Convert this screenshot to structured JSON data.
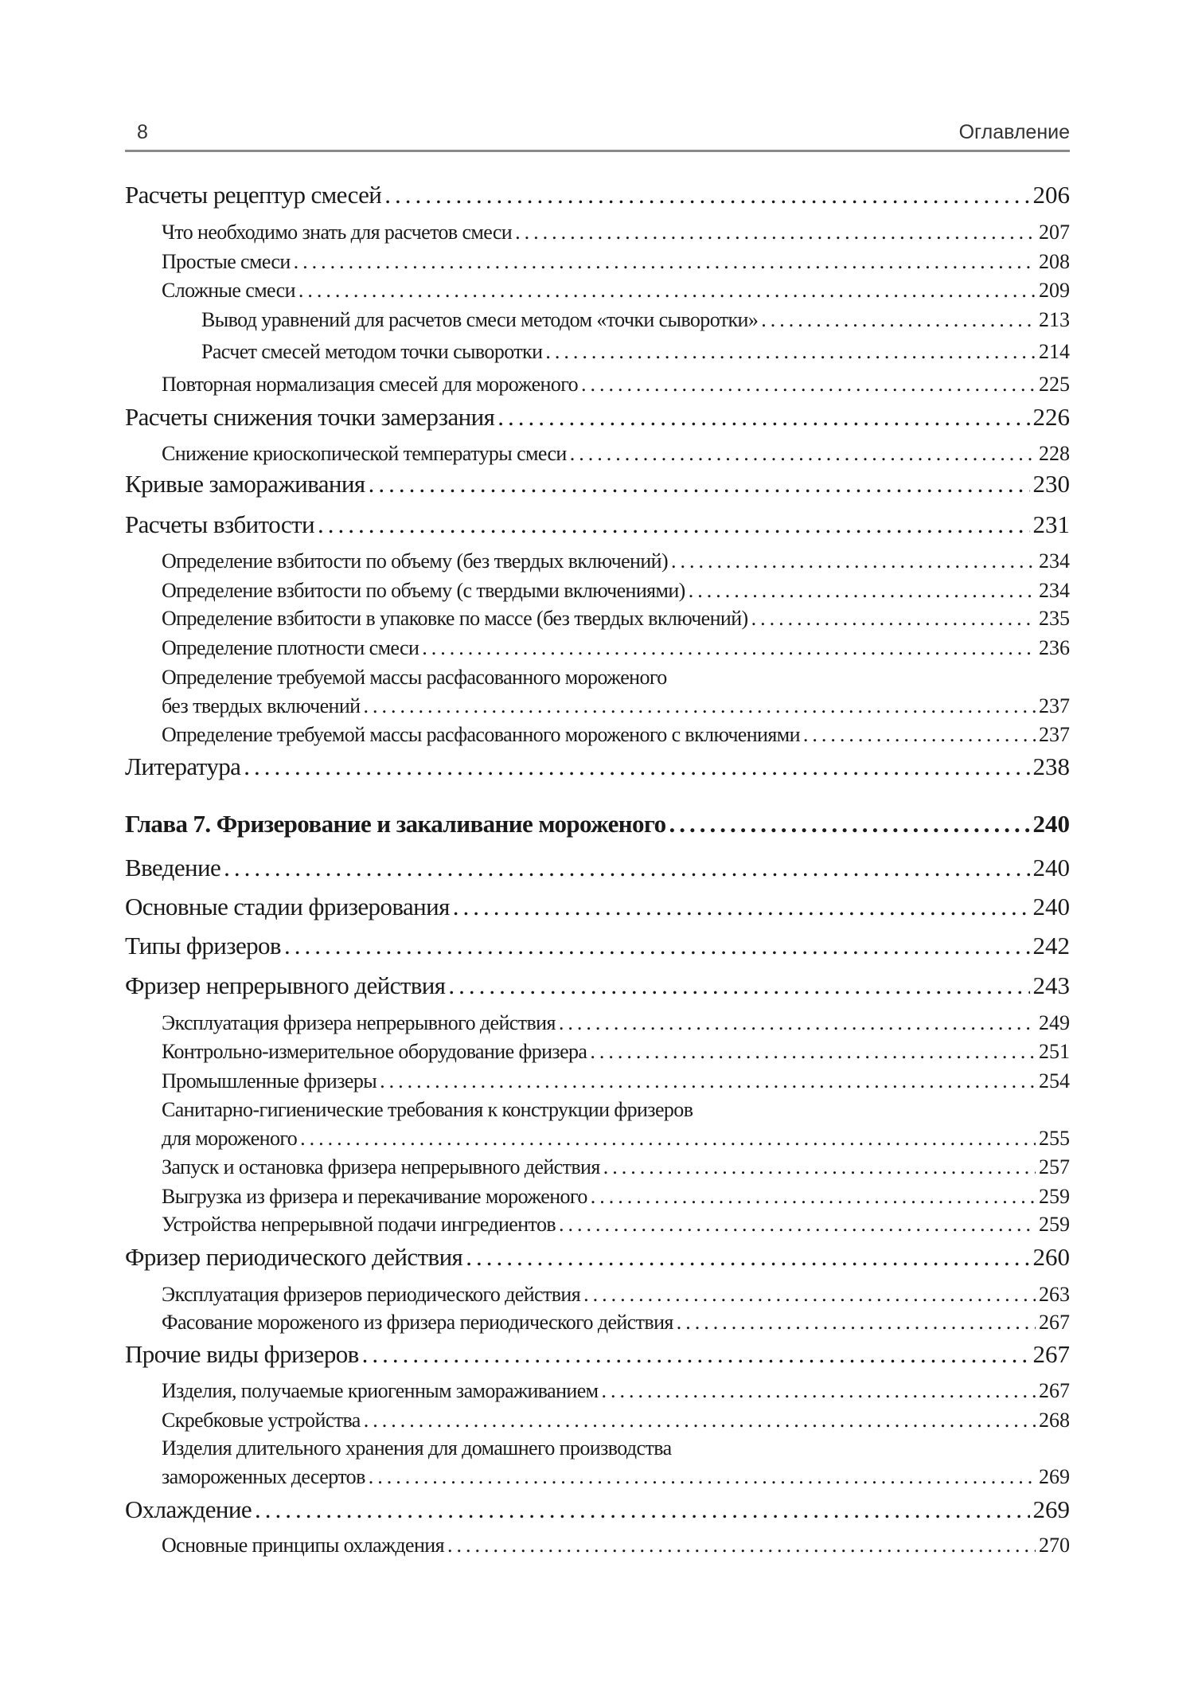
{
  "header": {
    "page_number": "8",
    "running_title": "Оглавление"
  },
  "entries": [
    {
      "level": 0,
      "lines": [
        "Расчеты рецептур смесей"
      ],
      "page": "206"
    },
    {
      "level": 1,
      "lines": [
        "Что необходимо знать для расчетов смеси"
      ],
      "page": "207"
    },
    {
      "level": 1,
      "lines": [
        "Простые смеси"
      ],
      "page": "208"
    },
    {
      "level": 1,
      "lines": [
        "Сложные смеси"
      ],
      "page": "209"
    },
    {
      "level": 2,
      "lines": [
        "Вывод уравнений для расчетов смеси методом «точки сыворотки»"
      ],
      "page": "213"
    },
    {
      "level": 2,
      "lines": [
        "Расчет смесей методом точки сыворотки"
      ],
      "page": "214"
    },
    {
      "level": 1,
      "lines": [
        "Повторная нормализация смесей для мороженого"
      ],
      "page": "225"
    },
    {
      "level": 0,
      "lines": [
        "Расчеты снижения точки замерзания"
      ],
      "page": "226"
    },
    {
      "level": 1,
      "lines": [
        "Снижение криоскопической температуры смеси"
      ],
      "page": "228"
    },
    {
      "level": 0,
      "lines": [
        "Кривые замораживания"
      ],
      "page": "230"
    },
    {
      "level": 0,
      "lines": [
        "Расчеты взбитости"
      ],
      "page": "231"
    },
    {
      "level": 1,
      "lines": [
        "Определение взбитости по объему (без твердых включений)"
      ],
      "page": "234"
    },
    {
      "level": 1,
      "lines": [
        "Определение взбитости по объему (с твердыми включениями)"
      ],
      "page": "234"
    },
    {
      "level": 1,
      "lines": [
        "Определение взбитости в упаковке по массе (без твердых включений)"
      ],
      "page": "235"
    },
    {
      "level": 1,
      "lines": [
        "Определение плотности смеси"
      ],
      "page": "236"
    },
    {
      "level": 1,
      "lines": [
        "Определение требуемой массы расфасованного мороженого",
        "без твердых включений"
      ],
      "page": "237"
    },
    {
      "level": 1,
      "lines": [
        "Определение требуемой массы расфасованного мороженого с включениями"
      ],
      "page": "237"
    },
    {
      "level": 0,
      "lines": [
        "Литература"
      ],
      "page": "238"
    },
    {
      "level": "chapter",
      "lines": [
        "Глава 7. Фризерование и закаливание мороженого"
      ],
      "page": "240"
    },
    {
      "level": 0,
      "lines": [
        "Введение"
      ],
      "page": "240"
    },
    {
      "level": 0,
      "lines": [
        "Основные стадии фризерования"
      ],
      "page": "240"
    },
    {
      "level": 0,
      "lines": [
        "Типы фризеров"
      ],
      "page": "242"
    },
    {
      "level": 0,
      "lines": [
        "Фризер непрерывного действия"
      ],
      "page": "243"
    },
    {
      "level": 1,
      "lines": [
        "Эксплуатация фризера непрерывного действия"
      ],
      "page": "249"
    },
    {
      "level": 1,
      "lines": [
        "Контрольно-измерительное оборудование фризера"
      ],
      "page": "251"
    },
    {
      "level": 1,
      "lines": [
        "Промышленные фризеры"
      ],
      "page": "254"
    },
    {
      "level": 1,
      "lines": [
        "Санитарно-гигиенические  требования  к конструкции фризеров",
        "для мороженого"
      ],
      "page": "255"
    },
    {
      "level": 1,
      "lines": [
        "Запуск и остановка фризера непрерывного действия"
      ],
      "page": "257"
    },
    {
      "level": 1,
      "lines": [
        "Выгрузка из фризера и перекачивание мороженого"
      ],
      "page": "259"
    },
    {
      "level": 1,
      "lines": [
        "Устройства непрерывной подачи ингредиентов"
      ],
      "page": "259"
    },
    {
      "level": 0,
      "lines": [
        "Фризер периодического действия"
      ],
      "page": "260"
    },
    {
      "level": 1,
      "lines": [
        "Эксплуатация фризеров периодического действия"
      ],
      "page": "263"
    },
    {
      "level": 1,
      "lines": [
        "Фасование мороженого из фризера периодического действия"
      ],
      "page": "267"
    },
    {
      "level": 0,
      "lines": [
        "Прочие виды фризеров"
      ],
      "page": "267"
    },
    {
      "level": 1,
      "lines": [
        "Изделия, получаемые криогенным замораживанием"
      ],
      "page": "267"
    },
    {
      "level": 1,
      "lines": [
        "Скребковые устройства"
      ],
      "page": "268"
    },
    {
      "level": 1,
      "lines": [
        "Изделия длительного хранения для домашнего производства",
        "замороженных десертов"
      ],
      "page": "269"
    },
    {
      "level": 0,
      "lines": [
        "Охлаждение"
      ],
      "page": "269"
    },
    {
      "level": 1,
      "lines": [
        "Основные принципы охлаждения"
      ],
      "page": "270"
    }
  ]
}
